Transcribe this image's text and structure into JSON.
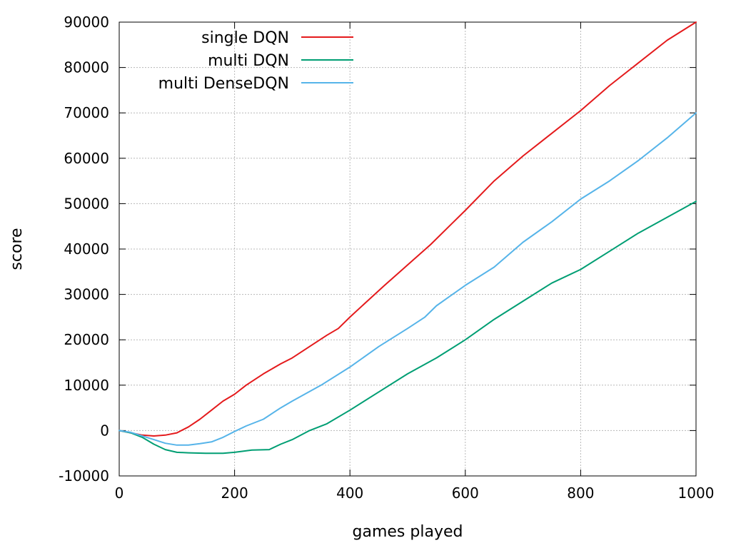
{
  "chart_data": {
    "type": "line",
    "title": "",
    "xlabel": "games played",
    "ylabel": "score",
    "xlim": [
      0,
      1000
    ],
    "ylim": [
      -10000,
      90000
    ],
    "xticks": [
      0,
      200,
      400,
      600,
      800,
      1000
    ],
    "yticks": [
      -10000,
      0,
      10000,
      20000,
      30000,
      40000,
      50000,
      60000,
      70000,
      80000,
      90000
    ],
    "grid": true,
    "legend_position": "top-left",
    "series": [
      {
        "name": "single DQN",
        "color": "#e41a1c",
        "x": [
          0,
          20,
          40,
          60,
          80,
          100,
          120,
          140,
          160,
          180,
          200,
          220,
          250,
          280,
          300,
          330,
          360,
          380,
          400,
          430,
          460,
          500,
          540,
          580,
          600,
          650,
          700,
          750,
          800,
          850,
          900,
          950,
          1000
        ],
        "y": [
          0,
          -500,
          -1000,
          -1200,
          -1000,
          -500,
          800,
          2500,
          4500,
          6500,
          8000,
          10000,
          12500,
          14700,
          16000,
          18500,
          21000,
          22500,
          25000,
          28500,
          32000,
          36500,
          41000,
          46000,
          48500,
          55000,
          60500,
          65500,
          70500,
          76000,
          81000,
          86000,
          90000
        ]
      },
      {
        "name": "multi DQN",
        "color": "#009e73",
        "x": [
          0,
          20,
          40,
          60,
          80,
          100,
          120,
          150,
          180,
          200,
          230,
          260,
          280,
          300,
          330,
          360,
          400,
          450,
          500,
          550,
          600,
          650,
          700,
          750,
          800,
          850,
          900,
          950,
          1000
        ],
        "y": [
          0,
          -500,
          -1500,
          -3000,
          -4200,
          -4800,
          -4900,
          -5000,
          -5000,
          -4800,
          -4300,
          -4200,
          -3000,
          -2000,
          0,
          1500,
          4500,
          8500,
          12500,
          16000,
          20000,
          24500,
          28500,
          32500,
          35500,
          39500,
          43500,
          47000,
          50500
        ]
      },
      {
        "name": "multi DenseDQN",
        "color": "#56b4e9",
        "x": [
          0,
          20,
          40,
          60,
          80,
          100,
          120,
          140,
          160,
          180,
          200,
          220,
          250,
          280,
          300,
          350,
          400,
          450,
          500,
          530,
          550,
          600,
          650,
          700,
          750,
          800,
          850,
          900,
          950,
          1000
        ],
        "y": [
          0,
          -400,
          -1200,
          -2000,
          -2800,
          -3200,
          -3200,
          -2900,
          -2500,
          -1500,
          -200,
          1000,
          2500,
          5000,
          6500,
          10000,
          14000,
          18500,
          22500,
          25000,
          27500,
          32000,
          36000,
          41500,
          46000,
          51000,
          55000,
          59500,
          64500,
          70000
        ]
      }
    ]
  }
}
